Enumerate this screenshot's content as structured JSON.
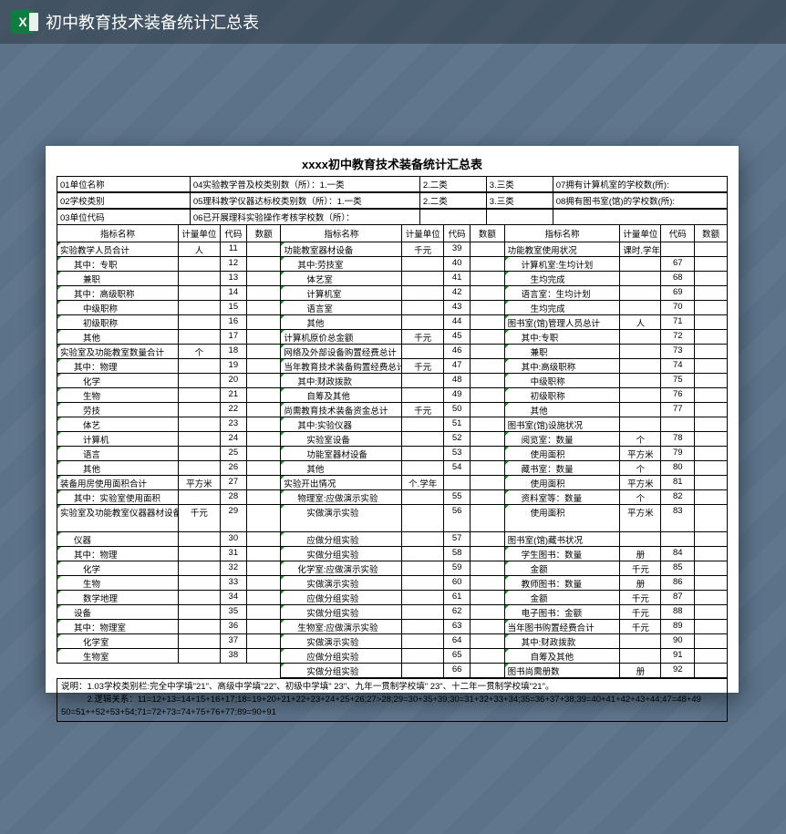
{
  "app": {
    "title": "初中教育技术装备统计汇总表",
    "icon_letter": "X"
  },
  "sheet": {
    "title": "xxxx初中教育技术装备统计汇总表",
    "header_rows": [
      [
        "01单位名称",
        "04实验教学普及校类别数（所）：1.一类",
        "2.二类",
        "3.三类",
        "07拥有计算机室的学校数(所):"
      ],
      [
        "02学校类别",
        "05理科教学仪器达标校类别数（所）：1.一类",
        "2.二类",
        "3.三类",
        "08拥有图书室(馆)的学校数(所):"
      ],
      [
        "03单位代码",
        "06已开展理科实验操作考核学校数（所）：",
        "",
        "",
        ""
      ]
    ],
    "col_headers": {
      "c1": [
        "指标名称",
        "计量单位",
        "代码",
        "数额"
      ],
      "c2": [
        "指标名称",
        "计量单位",
        "代码",
        "数额"
      ],
      "c3": [
        "指标名称",
        "计量单位",
        "代码",
        "数额"
      ]
    },
    "col1": [
      {
        "n": "实验教学人员合计",
        "u": "人",
        "c": "11",
        "m": 1
      },
      {
        "n": "其中：专职",
        "u": "",
        "c": "12",
        "m": 1,
        "i": 1
      },
      {
        "n": "兼职",
        "u": "",
        "c": "13",
        "m": 1,
        "i": 2
      },
      {
        "n": "其中：高级职称",
        "u": "",
        "c": "14",
        "m": 1,
        "i": 1
      },
      {
        "n": "中级职称",
        "u": "",
        "c": "15",
        "m": 1,
        "i": 2
      },
      {
        "n": "初级职称",
        "u": "",
        "c": "16",
        "m": 1,
        "i": 2
      },
      {
        "n": "其他",
        "u": "",
        "c": "17",
        "m": 1,
        "i": 2
      },
      {
        "n": "实验室及功能教室数量合计",
        "u": "个",
        "c": "18",
        "m": 1
      },
      {
        "n": "其中：物理",
        "u": "",
        "c": "19",
        "m": 1,
        "i": 1
      },
      {
        "n": "化学",
        "u": "",
        "c": "20",
        "m": 1,
        "i": 2
      },
      {
        "n": "生物",
        "u": "",
        "c": "21",
        "m": 1,
        "i": 2
      },
      {
        "n": "劳技",
        "u": "",
        "c": "22",
        "m": 1,
        "i": 2
      },
      {
        "n": "体艺",
        "u": "",
        "c": "23",
        "m": 1,
        "i": 2
      },
      {
        "n": "计算机",
        "u": "",
        "c": "24",
        "m": 1,
        "i": 2
      },
      {
        "n": "语言",
        "u": "",
        "c": "25",
        "m": 1,
        "i": 2
      },
      {
        "n": "其他",
        "u": "",
        "c": "26",
        "m": 1,
        "i": 2
      },
      {
        "n": "装备用房使用面积合计",
        "u": "平方米",
        "c": "27",
        "m": 1
      },
      {
        "n": "其中：实验室使用面积",
        "u": "",
        "c": "28",
        "m": 1,
        "i": 1
      },
      {
        "n": "实验室及功能教室仪器器材设备原价合计",
        "u": "千元",
        "c": "29",
        "m": 1,
        "t": 2
      },
      {
        "n": "仪器",
        "u": "",
        "c": "30",
        "m": 1,
        "i": 1
      },
      {
        "n": "其中：物理",
        "u": "",
        "c": "31",
        "m": 1,
        "i": 1
      },
      {
        "n": "化学",
        "u": "",
        "c": "32",
        "m": 1,
        "i": 2
      },
      {
        "n": "生物",
        "u": "",
        "c": "33",
        "m": 1,
        "i": 2
      },
      {
        "n": "数学地理",
        "u": "",
        "c": "34",
        "m": 1,
        "i": 2
      },
      {
        "n": "设备",
        "u": "",
        "c": "35",
        "m": 1,
        "i": 1
      },
      {
        "n": "其中：物理室",
        "u": "",
        "c": "36",
        "m": 1,
        "i": 1
      },
      {
        "n": "化学室",
        "u": "",
        "c": "37",
        "m": 1,
        "i": 2
      },
      {
        "n": "生物室",
        "u": "",
        "c": "38",
        "m": 1,
        "i": 2
      }
    ],
    "col2": [
      {
        "n": "功能教室器材设备",
        "u": "千元",
        "c": "39",
        "m": 1
      },
      {
        "n": "其中:劳技室",
        "u": "",
        "c": "40",
        "m": 1,
        "i": 1
      },
      {
        "n": "体艺室",
        "u": "",
        "c": "41",
        "m": 1,
        "i": 2
      },
      {
        "n": "计算机室",
        "u": "",
        "c": "42",
        "m": 1,
        "i": 2
      },
      {
        "n": "语言室",
        "u": "",
        "c": "43",
        "m": 1,
        "i": 2
      },
      {
        "n": "其他",
        "u": "",
        "c": "44",
        "m": 1,
        "i": 2
      },
      {
        "n": "计算机原价总金额",
        "u": "千元",
        "c": "45",
        "m": 1
      },
      {
        "n": "网络及外部设备购置经费总计",
        "u": "",
        "c": "46",
        "m": 1
      },
      {
        "n": "当年教育技术装备购置经费总计",
        "u": "千元",
        "c": "47",
        "m": 1
      },
      {
        "n": "其中:财政拨款",
        "u": "",
        "c": "48",
        "m": 1,
        "i": 1
      },
      {
        "n": "自筹及其他",
        "u": "",
        "c": "49",
        "m": 1,
        "i": 2
      },
      {
        "n": "尚需教育技术装备资金总计",
        "u": "千元",
        "c": "50",
        "m": 1
      },
      {
        "n": "其中:实验仪器",
        "u": "",
        "c": "51",
        "m": 1,
        "i": 1
      },
      {
        "n": "实验室设备",
        "u": "",
        "c": "52",
        "m": 1,
        "i": 2
      },
      {
        "n": "功能室器材设备",
        "u": "",
        "c": "53",
        "m": 1,
        "i": 2
      },
      {
        "n": "其他",
        "u": "",
        "c": "54",
        "m": 1,
        "i": 2
      },
      {
        "n": "实验开出情况",
        "u": "个.学年",
        "c": "",
        "m": 1
      },
      {
        "n": "物理室:应做演示实验",
        "u": "",
        "c": "55",
        "m": 1,
        "i": 1
      },
      {
        "n": "实做演示实验",
        "u": "",
        "c": "56",
        "m": 1,
        "i": 2,
        "t": 2.0
      },
      {
        "n": "应做分组实验",
        "u": "",
        "c": "57",
        "m": 1,
        "i": 2
      },
      {
        "n": "实做分组实验",
        "u": "",
        "c": "58",
        "m": 1,
        "i": 2
      },
      {
        "n": "化学室:应做演示实验",
        "u": "",
        "c": "59",
        "m": 1,
        "i": 1
      },
      {
        "n": "实做演示实验",
        "u": "",
        "c": "60",
        "m": 1,
        "i": 2
      },
      {
        "n": "应做分组实验",
        "u": "",
        "c": "61",
        "m": 1,
        "i": 2
      },
      {
        "n": "实做分组实验",
        "u": "",
        "c": "62",
        "m": 1,
        "i": 2
      },
      {
        "n": "生物室:应做演示实验",
        "u": "",
        "c": "63",
        "m": 1,
        "i": 1
      },
      {
        "n": "实做演示实验",
        "u": "",
        "c": "64",
        "m": 1,
        "i": 2
      },
      {
        "n": "应做分组实验",
        "u": "",
        "c": "65",
        "m": 1,
        "i": 2
      },
      {
        "n": "实做分组实验",
        "u": "",
        "c": "66",
        "m": 1,
        "i": 2
      }
    ],
    "col3": [
      {
        "n": "功能教室使用状况",
        "u": "课时.学年",
        "c": ""
      },
      {
        "n": "计算机室:生均计划",
        "u": "",
        "c": "67",
        "i": 1,
        "m": 1
      },
      {
        "n": "生均完成",
        "u": "",
        "c": "68",
        "i": 2,
        "m": 1
      },
      {
        "n": "语言室：生均计划",
        "u": "",
        "c": "69",
        "i": 1,
        "m": 1
      },
      {
        "n": "生均完成",
        "u": "",
        "c": "70",
        "i": 2,
        "m": 1
      },
      {
        "n": "图书室(馆)管理人员总计",
        "u": "人",
        "c": "71",
        "m": 1
      },
      {
        "n": "其中:专职",
        "u": "",
        "c": "72",
        "i": 1,
        "m": 1
      },
      {
        "n": "兼职",
        "u": "",
        "c": "73",
        "i": 2,
        "m": 1
      },
      {
        "n": "其中:高级职称",
        "u": "",
        "c": "74",
        "i": 1,
        "m": 1
      },
      {
        "n": "中级职称",
        "u": "",
        "c": "75",
        "i": 2,
        "m": 1
      },
      {
        "n": "初级职称",
        "u": "",
        "c": "76",
        "i": 2,
        "m": 1
      },
      {
        "n": "其他",
        "u": "",
        "c": "77",
        "i": 2,
        "m": 1
      },
      {
        "n": "图书室(馆)设施状况",
        "u": "",
        "c": ""
      },
      {
        "n": "阅览室：数量",
        "u": "个",
        "c": "78",
        "i": 1,
        "m": 1
      },
      {
        "n": "使用面积",
        "u": "平方米",
        "c": "79",
        "i": 2,
        "m": 1
      },
      {
        "n": "藏书室：数量",
        "u": "个",
        "c": "80",
        "i": 1,
        "m": 1
      },
      {
        "n": "使用面积",
        "u": "平方米",
        "c": "81",
        "i": 2,
        "m": 1
      },
      {
        "n": "资料室等：数量",
        "u": "个",
        "c": "82",
        "i": 1,
        "m": 1
      },
      {
        "n": "使用面积",
        "u": "平方米",
        "c": "83",
        "i": 2,
        "m": 1,
        "t": 2
      },
      {
        "n": "图书室(馆)藏书状况",
        "u": "",
        "c": ""
      },
      {
        "n": "学生图书：数量",
        "u": "册",
        "c": "84",
        "i": 1,
        "m": 1
      },
      {
        "n": "金额",
        "u": "千元",
        "c": "85",
        "i": 2,
        "m": 1
      },
      {
        "n": "教师图书：数量",
        "u": "册",
        "c": "86",
        "i": 1,
        "m": 1
      },
      {
        "n": "金额",
        "u": "千元",
        "c": "87",
        "i": 2,
        "m": 1
      },
      {
        "n": "电子图书：金额",
        "u": "千元",
        "c": "88",
        "i": 1,
        "m": 1
      },
      {
        "n": "当年图书购置经费合计",
        "u": "千元",
        "c": "89",
        "m": 1
      },
      {
        "n": "其中:财政拨款",
        "u": "",
        "c": "90",
        "i": 1,
        "m": 1
      },
      {
        "n": "自筹及其他",
        "u": "",
        "c": "91",
        "i": 2,
        "m": 1
      },
      {
        "n": "图书尚需册数",
        "u": "册",
        "c": "92",
        "m": 1
      }
    ],
    "notes": [
      "说明：1.03学校类别栏:完全中学填\"21\"、高级中学填\"22\"、初级中学填\" 23\"、九年一贯制学校填\" 23\"、十二年一贯制学校填\"21\"。",
      "　　　2.逻辑关系：11=12+13=14+15+16+17;18=19+20+21+22+23+24+25+26;27>28;29=30+35+39;30=31+32+33+34;35=36+37+38;39=40+41+42+43+44;47=48+49",
      "50=51++52+53+54;71=72+73=74+75+76+77;89=90+91"
    ]
  }
}
